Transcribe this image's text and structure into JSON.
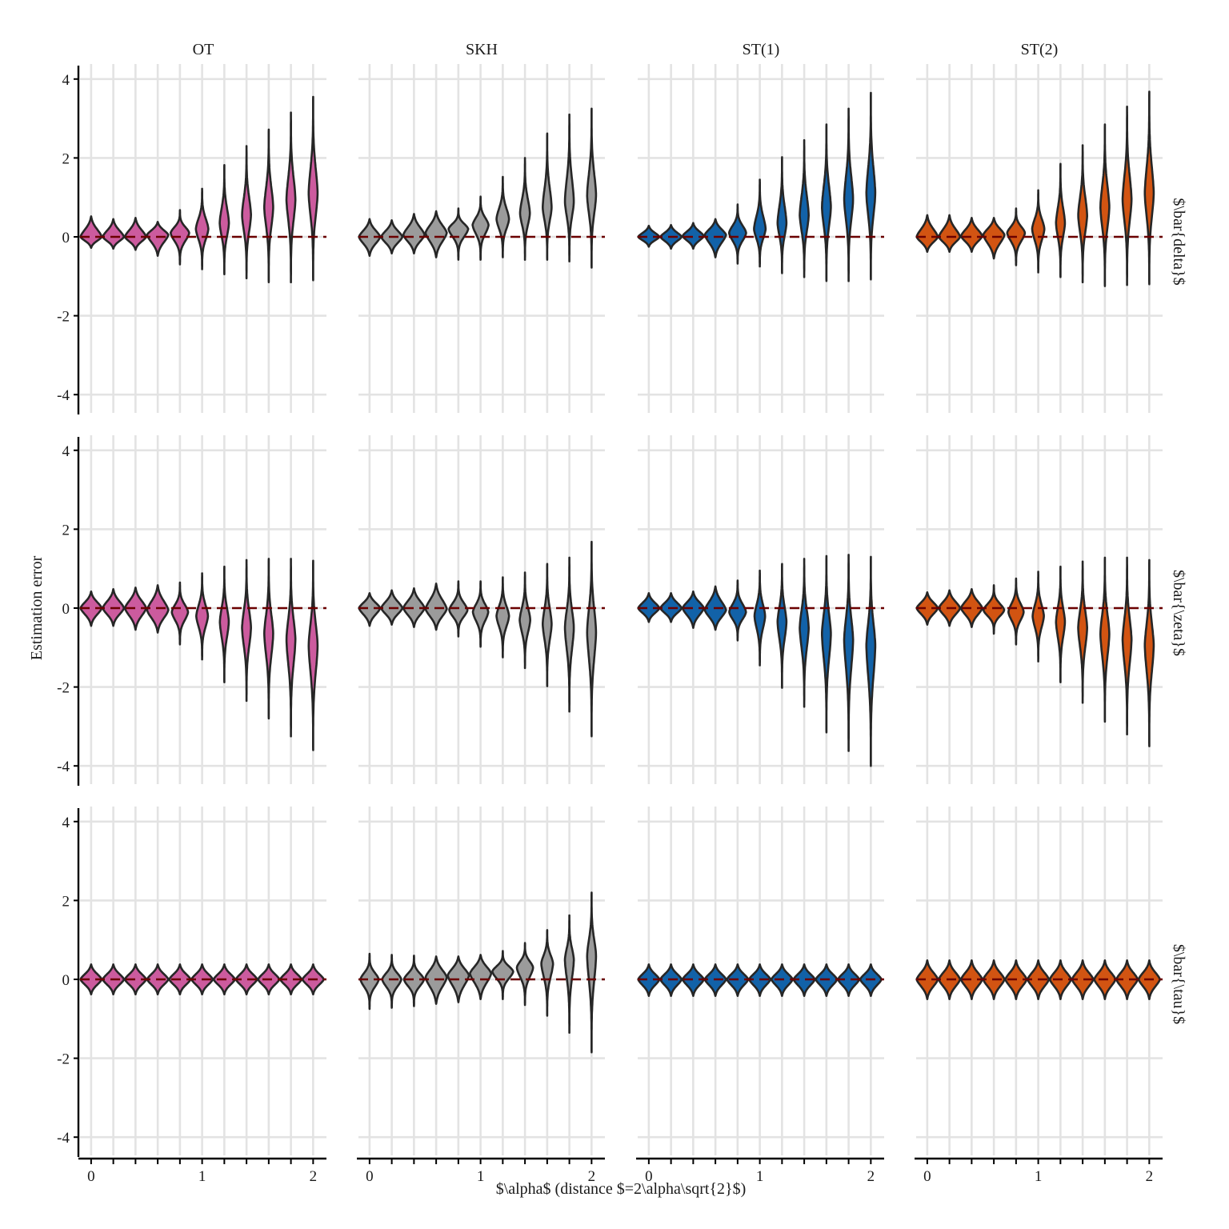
{
  "chart_data": {
    "type": "violin",
    "facet_columns": [
      "OT",
      "SKH",
      "ST(1)",
      "ST(2)"
    ],
    "facet_rows": [
      "$\\bar{delta}$",
      "$\\bar{\\zeta}$",
      "$\\bar{\\tau}$"
    ],
    "xlabel": "$\\alpha$ (distance $=2\\alpha\\sqrt{2}$)",
    "ylabel": "Estimation error",
    "x_values": [
      0,
      0.2,
      0.4,
      0.6,
      0.8,
      1.0,
      1.2,
      1.4,
      1.6,
      1.8,
      2.0
    ],
    "x_ticks": [
      0,
      1,
      2
    ],
    "x_tick_labels": [
      "0",
      "1",
      "2"
    ],
    "xlim": [
      -0.1,
      2.12
    ],
    "ylim": [
      -4.3,
      4.3
    ],
    "y_ticks": [
      -4,
      -2,
      0,
      2,
      4
    ],
    "y_tick_labels": [
      "-4",
      "-2",
      "0",
      "2",
      "4"
    ],
    "reference_line": 0,
    "colors": {
      "OT": "#cc5b9e",
      "SKH": "#9b9b9b",
      "ST(1)": "#1262a8",
      "ST(2)": "#d25412"
    },
    "series": [
      {
        "row": 0,
        "col": 0,
        "min": [
          -0.28,
          -0.3,
          -0.33,
          -0.48,
          -0.7,
          -0.82,
          -0.95,
          -1.05,
          -1.15,
          -1.15,
          -1.1
        ],
        "max": [
          0.52,
          0.45,
          0.48,
          0.38,
          0.68,
          1.22,
          1.82,
          2.3,
          2.72,
          3.15,
          3.55
        ],
        "median": [
          0,
          0,
          0,
          0.05,
          0.1,
          0.2,
          0.35,
          0.55,
          0.75,
          0.95,
          1.1
        ]
      },
      {
        "row": 0,
        "col": 1,
        "min": [
          -0.48,
          -0.42,
          -0.42,
          -0.52,
          -0.58,
          -0.58,
          -0.52,
          -0.58,
          -0.58,
          -0.62,
          -0.78
        ],
        "max": [
          0.45,
          0.42,
          0.58,
          0.65,
          0.72,
          1.02,
          1.52,
          2.0,
          2.62,
          3.1,
          3.25
        ],
        "median": [
          0,
          0,
          0.05,
          0.1,
          0.2,
          0.3,
          0.45,
          0.6,
          0.75,
          0.9,
          1.05
        ]
      },
      {
        "row": 0,
        "col": 2,
        "min": [
          -0.25,
          -0.3,
          -0.3,
          -0.52,
          -0.68,
          -0.75,
          -0.92,
          -1.02,
          -1.12,
          -1.12,
          -1.08
        ],
        "max": [
          0.28,
          0.3,
          0.35,
          0.45,
          0.82,
          1.45,
          2.02,
          2.45,
          2.85,
          3.25,
          3.65
        ],
        "median": [
          0,
          0,
          0.02,
          0.05,
          0.1,
          0.2,
          0.35,
          0.55,
          0.75,
          0.95,
          1.1
        ]
      },
      {
        "row": 0,
        "col": 3,
        "min": [
          -0.38,
          -0.38,
          -0.38,
          -0.55,
          -0.72,
          -0.9,
          -1.02,
          -1.15,
          -1.25,
          -1.22,
          -1.2
        ],
        "max": [
          0.55,
          0.55,
          0.48,
          0.48,
          0.72,
          1.18,
          1.85,
          2.32,
          2.85,
          3.3,
          3.68
        ],
        "median": [
          0,
          0,
          0.02,
          0.05,
          0.1,
          0.2,
          0.35,
          0.55,
          0.75,
          0.95,
          1.1
        ]
      },
      {
        "row": 1,
        "col": 0,
        "min": [
          -0.45,
          -0.45,
          -0.55,
          -0.62,
          -0.92,
          -1.3,
          -1.88,
          -2.35,
          -2.8,
          -3.25,
          -3.6
        ],
        "max": [
          0.42,
          0.48,
          0.52,
          0.58,
          0.65,
          0.88,
          1.05,
          1.22,
          1.25,
          1.25,
          1.2
        ],
        "median": [
          0,
          0,
          0,
          -0.05,
          -0.1,
          -0.2,
          -0.35,
          -0.5,
          -0.65,
          -0.8,
          -0.95
        ]
      },
      {
        "row": 1,
        "col": 1,
        "min": [
          -0.45,
          -0.42,
          -0.48,
          -0.55,
          -0.72,
          -0.98,
          -1.25,
          -1.52,
          -1.98,
          -2.62,
          -3.25
        ],
        "max": [
          0.38,
          0.45,
          0.5,
          0.62,
          0.68,
          0.68,
          0.78,
          0.9,
          1.12,
          1.28,
          1.68
        ],
        "median": [
          0,
          0,
          0,
          -0.02,
          -0.05,
          -0.1,
          -0.2,
          -0.3,
          -0.4,
          -0.5,
          -0.6
        ]
      },
      {
        "row": 1,
        "col": 2,
        "min": [
          -0.35,
          -0.35,
          -0.5,
          -0.55,
          -0.82,
          -1.45,
          -2.02,
          -2.5,
          -3.15,
          -3.62,
          -4.0
        ],
        "max": [
          0.38,
          0.38,
          0.42,
          0.55,
          0.7,
          0.95,
          1.12,
          1.25,
          1.32,
          1.35,
          1.3
        ],
        "median": [
          0,
          0,
          0,
          -0.05,
          -0.1,
          -0.2,
          -0.35,
          -0.5,
          -0.65,
          -0.8,
          -0.95
        ]
      },
      {
        "row": 1,
        "col": 3,
        "min": [
          -0.42,
          -0.45,
          -0.48,
          -0.65,
          -0.92,
          -1.35,
          -1.88,
          -2.4,
          -2.88,
          -3.2,
          -3.5
        ],
        "max": [
          0.4,
          0.45,
          0.48,
          0.58,
          0.75,
          0.92,
          1.05,
          1.18,
          1.28,
          1.28,
          1.22
        ],
        "median": [
          0,
          0,
          0,
          -0.05,
          -0.1,
          -0.2,
          -0.35,
          -0.5,
          -0.65,
          -0.8,
          -0.95
        ]
      },
      {
        "row": 2,
        "col": 0,
        "min": [
          -0.38,
          -0.38,
          -0.38,
          -0.38,
          -0.38,
          -0.38,
          -0.38,
          -0.38,
          -0.38,
          -0.38,
          -0.38
        ],
        "max": [
          0.38,
          0.38,
          0.38,
          0.38,
          0.38,
          0.38,
          0.38,
          0.38,
          0.38,
          0.38,
          0.38
        ],
        "median": [
          0,
          0,
          0,
          0,
          0,
          0,
          0,
          0,
          0,
          0,
          0
        ]
      },
      {
        "row": 2,
        "col": 1,
        "min": [
          -0.75,
          -0.72,
          -0.68,
          -0.62,
          -0.58,
          -0.5,
          -0.5,
          -0.65,
          -0.92,
          -1.35,
          -1.85
        ],
        "max": [
          0.65,
          0.62,
          0.6,
          0.58,
          0.58,
          0.62,
          0.72,
          0.92,
          1.25,
          1.62,
          2.2
        ],
        "median": [
          0,
          0,
          0,
          0.05,
          0.1,
          0.15,
          0.2,
          0.3,
          0.4,
          0.5,
          0.6
        ]
      },
      {
        "row": 2,
        "col": 2,
        "min": [
          -0.42,
          -0.42,
          -0.42,
          -0.42,
          -0.42,
          -0.42,
          -0.42,
          -0.42,
          -0.42,
          -0.42,
          -0.42
        ],
        "max": [
          0.38,
          0.38,
          0.38,
          0.38,
          0.38,
          0.38,
          0.38,
          0.38,
          0.38,
          0.38,
          0.38
        ],
        "median": [
          0,
          0,
          0,
          0,
          0,
          0,
          0,
          0,
          0,
          0,
          0
        ]
      },
      {
        "row": 2,
        "col": 3,
        "min": [
          -0.5,
          -0.5,
          -0.5,
          -0.5,
          -0.5,
          -0.5,
          -0.5,
          -0.5,
          -0.5,
          -0.5,
          -0.5
        ],
        "max": [
          0.48,
          0.48,
          0.48,
          0.48,
          0.48,
          0.48,
          0.48,
          0.48,
          0.48,
          0.48,
          0.48
        ],
        "median": [
          0,
          0,
          0,
          0,
          0,
          0,
          0,
          0,
          0,
          0,
          0
        ]
      }
    ]
  }
}
